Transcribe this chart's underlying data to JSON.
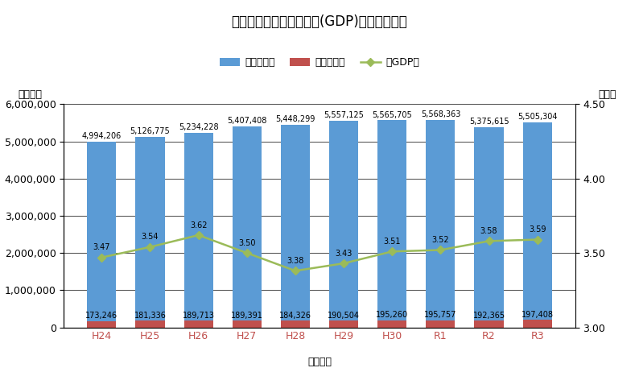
{
  "title": "』研究費の対国内総生産(GDP)比率の推移』",
  "categories": [
    "H24",
    "H25",
    "H26",
    "H27",
    "H28",
    "H29",
    "H30",
    "R1",
    "R2",
    "R3"
  ],
  "gdp_values": [
    4994206,
    5126775,
    5234228,
    5407408,
    5448299,
    5557125,
    5565705,
    5568363,
    5375615,
    5505304
  ],
  "research_values": [
    173246,
    181336,
    189713,
    189391,
    184326,
    190504,
    195260,
    195757,
    192365,
    197408
  ],
  "gdp_ratio": [
    3.47,
    3.54,
    3.62,
    3.5,
    3.38,
    3.43,
    3.51,
    3.52,
    3.58,
    3.59
  ],
  "gdp_labels": [
    "4,994,206",
    "5,126,775",
    "5,234,228",
    "5,407,408",
    "5,448,299",
    "5,557,125",
    "5,565,705",
    "5,568,363",
    "5,375,615",
    "5,505,304"
  ],
  "research_labels": [
    "173,246",
    "181,336",
    "189,713",
    "189,391",
    "184,326",
    "190,504",
    "195,260",
    "195,757",
    "192,365",
    "197,408"
  ],
  "ratio_labels": [
    "3.47",
    "3.54",
    "3.62",
    "3.50",
    "3.38",
    "3.43",
    "3.51",
    "3.52",
    "3.58",
    "3.59"
  ],
  "bar_color_gdp": "#5B9BD5",
  "bar_color_research": "#C0504D",
  "line_color_ratio": "#9BBB59",
  "xlabel": "（年度）",
  "ylabel_left": "（億円）",
  "ylabel_right": "（％）",
  "ylim_left": [
    0,
    6000000
  ],
  "ylim_right": [
    3.0,
    4.5
  ],
  "yticks_left": [
    0,
    1000000,
    2000000,
    3000000,
    4000000,
    5000000,
    6000000
  ],
  "yticks_right": [
    3.0,
    3.5,
    4.0,
    4.5
  ],
  "legend_labels": [
    "国内総生産",
    "研究費総額",
    "対GDP比"
  ],
  "title_fontsize": 12,
  "label_fontsize": 9,
  "tick_fontsize": 9,
  "annotation_fontsize": 7,
  "background_color": "#FFFFFF",
  "xticklabel_color": "#C0504D"
}
